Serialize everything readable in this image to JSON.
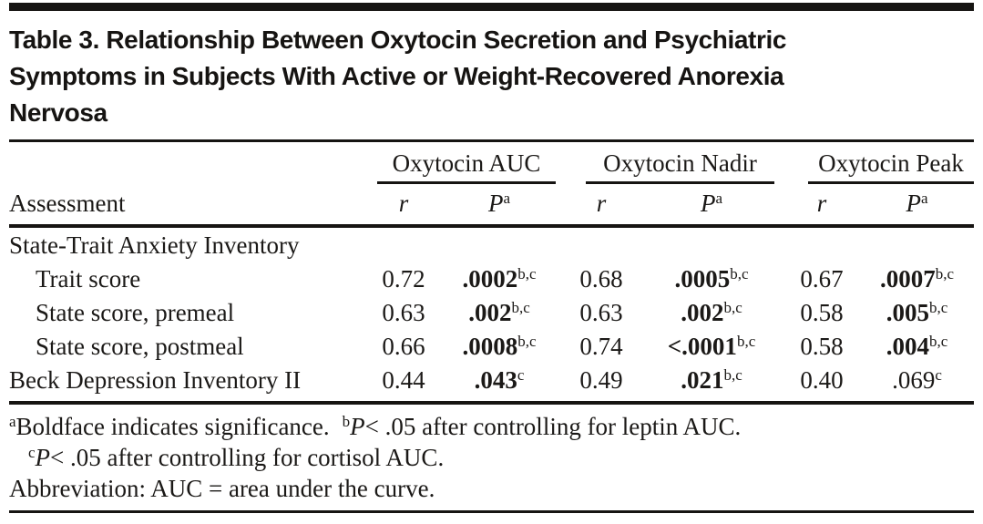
{
  "colors": {
    "background": "#ffffff",
    "text": "#1b1917",
    "rule": "#161412"
  },
  "title": {
    "lines": [
      "Table 3. Relationship Between Oxytocin Secretion and Psychiatric",
      "Symptoms in Subjects With Active or Weight-Recovered Anorexia",
      "Nervosa"
    ]
  },
  "table": {
    "assessment_label": "Assessment",
    "groups": [
      {
        "label": "Oxytocin AUC"
      },
      {
        "label": "Oxytocin Nadir"
      },
      {
        "label": "Oxytocin Peak"
      }
    ],
    "subcols": {
      "r": "r",
      "p": "P",
      "p_sup": "a"
    },
    "rows": [
      {
        "label": "State-Trait Anxiety Inventory",
        "section": true
      },
      {
        "label": "Trait score",
        "indent": true,
        "cells": [
          {
            "r": "0.72",
            "p": ".0002",
            "sup": "b,c",
            "bold": true
          },
          {
            "r": "0.68",
            "p": ".0005",
            "sup": "b,c",
            "bold": true
          },
          {
            "r": "0.67",
            "p": ".0007",
            "sup": "b,c",
            "bold": true
          }
        ]
      },
      {
        "label": "State score, premeal",
        "indent": true,
        "cells": [
          {
            "r": "0.63",
            "p": ".002",
            "sup": "b,c",
            "bold": true
          },
          {
            "r": "0.63",
            "p": ".002",
            "sup": "b,c",
            "bold": true
          },
          {
            "r": "0.58",
            "p": ".005",
            "sup": "b,c",
            "bold": true
          }
        ]
      },
      {
        "label": "State score, postmeal",
        "indent": true,
        "cells": [
          {
            "r": "0.66",
            "p": ".0008",
            "sup": "b,c",
            "bold": true
          },
          {
            "r": "0.74",
            "p": "<.0001",
            "sup": "b,c",
            "bold": true
          },
          {
            "r": "0.58",
            "p": ".004",
            "sup": "b,c",
            "bold": true
          }
        ]
      },
      {
        "label": "Beck Depression Inventory II",
        "indent": false,
        "cells": [
          {
            "r": "0.44",
            "p": ".043",
            "sup": "c",
            "bold": true
          },
          {
            "r": "0.49",
            "p": ".021",
            "sup": "b,c",
            "bold": true
          },
          {
            "r": "0.40",
            "p": ".069",
            "sup": "c",
            "bold": false
          }
        ]
      }
    ]
  },
  "footnotes": {
    "a": {
      "sup": "a",
      "text": "Boldface indicates significance."
    },
    "b": {
      "sup": "b",
      "p": "P",
      "text": "< .05 after controlling for leptin AUC."
    },
    "c": {
      "sup": "c",
      "p": "P",
      "text": "< .05 after controlling for cortisol AUC."
    },
    "abbrev": "Abbreviation: AUC = area under the curve."
  }
}
